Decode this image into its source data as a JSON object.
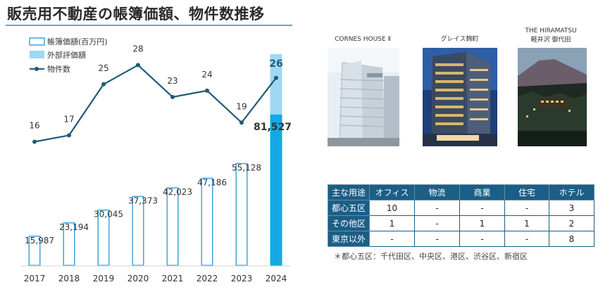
{
  "title": "販売用不動産の帳簿価額、物件数推移",
  "legend": {
    "book_value": "帳簿価額(百万円)",
    "appraisal": "外部評価額",
    "count": "物件数"
  },
  "colors": {
    "bar_outline": "#3ea6dc",
    "appraisal_light": "#9fd8f2",
    "appraisal_dark": "#12a9e6",
    "line": "#1f5b73",
    "title_rule": "#5fa7d6",
    "table_header": "#1b5e86"
  },
  "chart_data": {
    "type": "bar",
    "categories": [
      "2017",
      "2018",
      "2019",
      "2020",
      "2021",
      "2022",
      "2023",
      "2024"
    ],
    "series": [
      {
        "name": "帳簿価額(百万円)",
        "type": "bar",
        "values": [
          15987,
          23194,
          30045,
          37373,
          42023,
          47186,
          55128,
          81527
        ],
        "labels": [
          "15,987",
          "23,194",
          "30,045",
          "37,373",
          "42,023",
          "47,186",
          "55,128",
          "81,527"
        ]
      },
      {
        "name": "外部評価額",
        "type": "bar",
        "values": [
          null,
          null,
          null,
          null,
          null,
          null,
          null,
          114000
        ]
      },
      {
        "name": "物件数",
        "type": "line",
        "values": [
          16,
          17,
          25,
          28,
          23,
          24,
          19,
          26
        ],
        "labels": [
          "16",
          "17",
          "25",
          "28",
          "23",
          "24",
          "19",
          "26"
        ]
      }
    ],
    "title": "販売用不動産の帳簿価額、物件数推移",
    "xlabel": "",
    "ylabel": "",
    "legend_position": "top-left",
    "grid": false
  },
  "properties": [
    {
      "name": "CORNES HOUSE Ⅱ"
    },
    {
      "name": "グレイス麹町"
    },
    {
      "name": "THE HIRAMATSU",
      "subname": "軽井沢 御代田"
    }
  ],
  "usage_table": {
    "header": [
      "主な用途",
      "オフィス",
      "物流",
      "商業",
      "住宅",
      "ホテル"
    ],
    "rows": [
      {
        "label": "都心五区",
        "cells": [
          "10",
          "-",
          "-",
          "-",
          "3"
        ]
      },
      {
        "label": "その他区",
        "cells": [
          "1",
          "-",
          "1",
          "1",
          "2"
        ]
      },
      {
        "label": "東京以外",
        "cells": [
          "-",
          "-",
          "-",
          "-",
          "8"
        ]
      }
    ]
  },
  "footnote": "＊都心五区：千代田区、中央区、港区、渋谷区、新宿区"
}
